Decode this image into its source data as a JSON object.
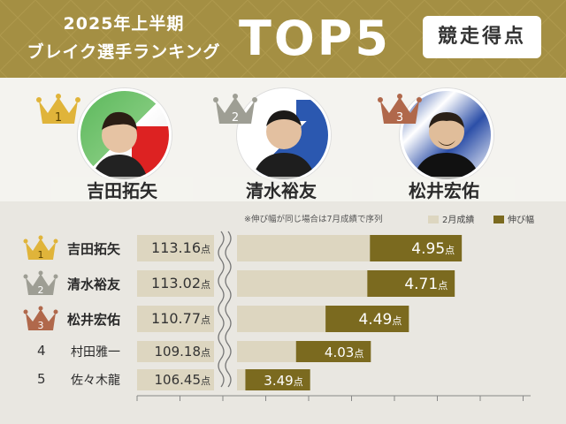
{
  "header": {
    "year_title": "2025年上半期",
    "ranking_title": "ブレイク選手ランキング",
    "top_label": "TOP5",
    "badge": "競走得点"
  },
  "podium": [
    {
      "rank": "1",
      "name": "吉田拓矢"
    },
    {
      "rank": "2",
      "name": "清水裕友"
    },
    {
      "rank": "3",
      "name": "松井宏佑"
    }
  ],
  "note": "※伸び幅が同じ場合は7月成績で序列",
  "colors": {
    "gold": "#a48f43",
    "bar_light": "#ddd6c0",
    "bar_dark": "#7b6a1f",
    "crown_gold": "#e0b43a",
    "crown_silver": "#9e9e94",
    "crown_bronze": "#b0684b"
  },
  "chart_data": {
    "type": "bar",
    "legend": [
      "2月成績",
      "伸び幅"
    ],
    "unit": "点",
    "rows": [
      {
        "rank": "1",
        "name": "吉田拓矢",
        "feb_score": "113.16",
        "growth": "4.95"
      },
      {
        "rank": "2",
        "name": "清水裕友",
        "feb_score": "113.02",
        "growth": "4.71"
      },
      {
        "rank": "3",
        "name": "松井宏佑",
        "feb_score": "110.77",
        "growth": "4.49"
      },
      {
        "rank": "4",
        "name": "村田雅一",
        "feb_score": "109.18",
        "growth": "4.03"
      },
      {
        "rank": "5",
        "name": "佐々木龍",
        "feb_score": "106.45",
        "growth": "3.49"
      }
    ],
    "axis_note": "broken axis (wavy break) between score column and bars"
  }
}
